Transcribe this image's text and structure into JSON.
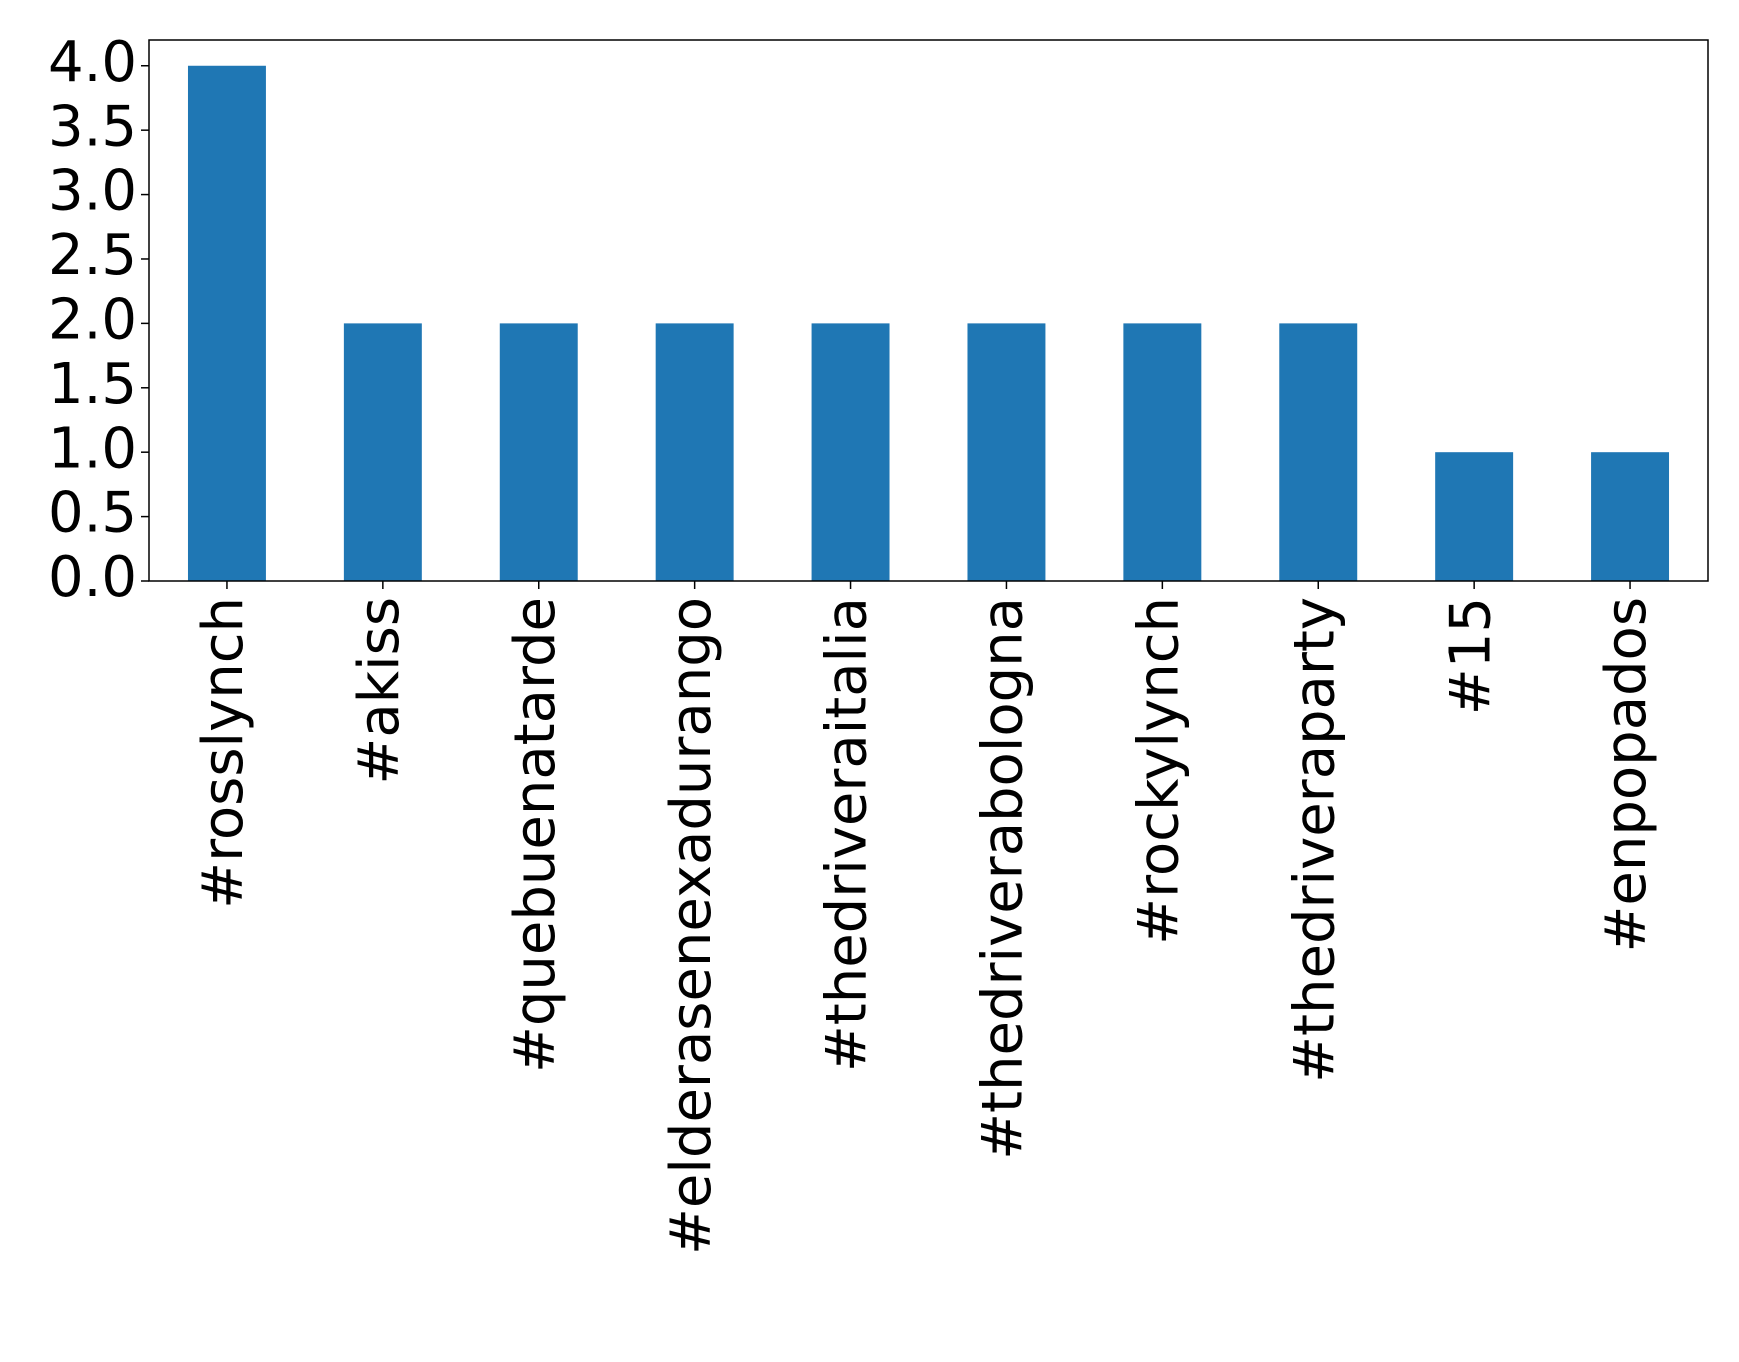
{
  "chart_data": {
    "type": "bar",
    "categories": [
      "#rosslynch",
      "#akiss",
      "#quebuenatarde",
      "#elderasenexadurango",
      "#thedriveraitalia",
      "#thedriverabologna",
      "#rockylynch",
      "#thedriveraparty",
      "#15",
      "#enpopados"
    ],
    "values": [
      4,
      2,
      2,
      2,
      2,
      2,
      2,
      2,
      1,
      1
    ],
    "color": "#1f77b4",
    "ylim": [
      0,
      4.2
    ],
    "yticks": [
      {
        "value": 0,
        "label": "0.0"
      },
      {
        "value": 0.5,
        "label": "0.5"
      },
      {
        "value": 1,
        "label": "1.0"
      },
      {
        "value": 1.5,
        "label": "1.5"
      },
      {
        "value": 2,
        "label": "2.0"
      },
      {
        "value": 2.5,
        "label": "2.5"
      },
      {
        "value": 3,
        "label": "3.0"
      },
      {
        "value": 3.5,
        "label": "3.5"
      },
      {
        "value": 4,
        "label": "4.0"
      }
    ],
    "grid": false
  }
}
